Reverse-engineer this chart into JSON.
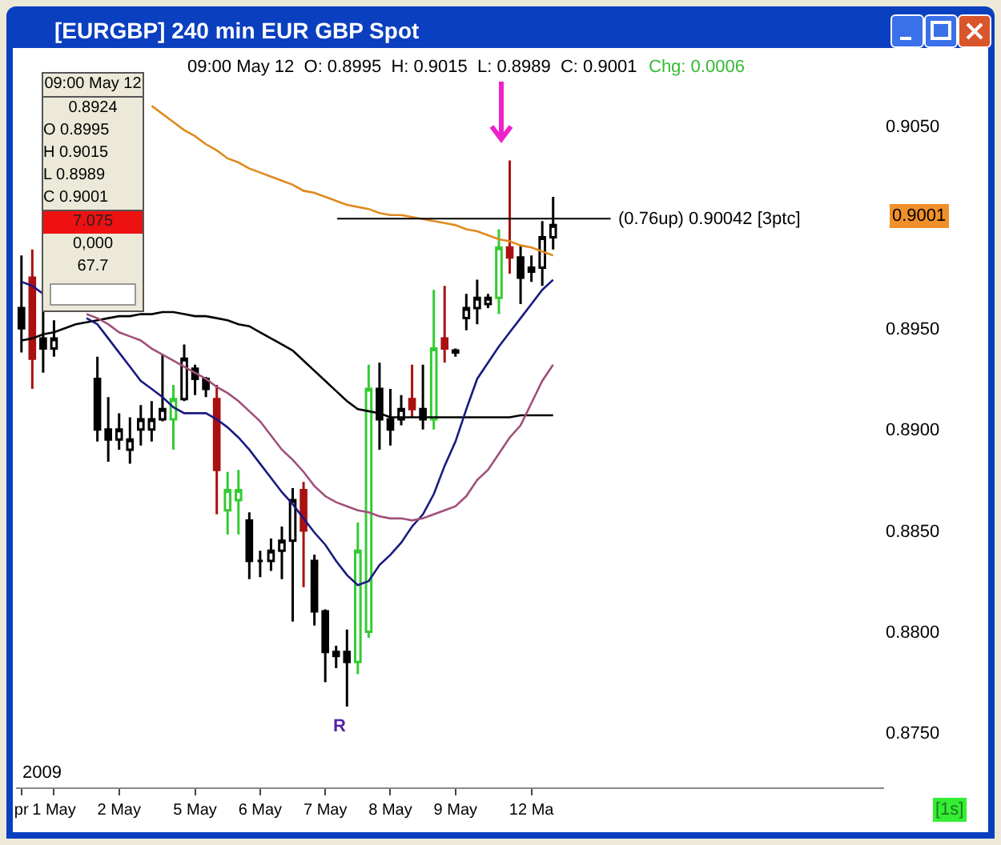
{
  "chart_data": {
    "type": "candlestick",
    "title": "[EURGBP] 240 min EUR GBP Spot",
    "categories": [
      "pr",
      null,
      null,
      "1 May",
      null,
      null,
      null,
      null,
      null,
      "2 May",
      null,
      null,
      null,
      null,
      null,
      null,
      "5 May",
      null,
      null,
      null,
      null,
      null,
      "6 May",
      null,
      null,
      null,
      null,
      null,
      "7 May",
      null,
      null,
      null,
      null,
      null,
      "8 May",
      null,
      null,
      null,
      null,
      null,
      "9 May",
      null,
      null,
      null,
      null,
      null,
      null,
      "12 Ma",
      null,
      null,
      null,
      null,
      null,
      null,
      null,
      null,
      null,
      null,
      null,
      null,
      null,
      null,
      null,
      null,
      null,
      null,
      null,
      null,
      null,
      null,
      null,
      null,
      null,
      null,
      null,
      null,
      null,
      null,
      null,
      null
    ],
    "ohlc": [
      [
        0.896,
        0.8986,
        0.8938,
        0.895
      ],
      [
        0.8975,
        0.8989,
        0.892,
        0.8935
      ],
      [
        0.8945,
        0.8962,
        0.8928,
        0.894
      ],
      [
        0.894,
        0.8954,
        0.8936,
        0.8945
      ],
      null,
      null,
      null,
      [
        0.8925,
        0.8936,
        0.8894,
        0.89
      ],
      [
        0.89,
        0.8916,
        0.8884,
        0.8895
      ],
      [
        0.8895,
        0.8908,
        0.889,
        0.89
      ],
      [
        0.889,
        0.8906,
        0.8883,
        0.8895
      ],
      [
        0.89,
        0.8912,
        0.8892,
        0.8905
      ],
      [
        0.89,
        0.8914,
        0.8894,
        0.8905
      ],
      [
        0.8905,
        0.8937,
        0.8904,
        0.891
      ],
      [
        0.8905,
        0.8922,
        0.889,
        0.8915
      ],
      [
        0.8915,
        0.8942,
        0.8914,
        0.8935
      ],
      [
        0.893,
        0.8932,
        0.8917,
        0.8925
      ],
      [
        0.8925,
        0.8926,
        0.8916,
        0.892
      ],
      [
        0.8915,
        0.8922,
        0.8858,
        0.888
      ],
      [
        0.886,
        0.8879,
        0.8848,
        0.887
      ],
      [
        0.8865,
        0.888,
        0.8848,
        0.887
      ],
      [
        0.8855,
        0.8859,
        0.8826,
        0.8835
      ],
      [
        0.8835,
        0.884,
        0.8827,
        0.8835
      ],
      [
        0.8835,
        0.8846,
        0.883,
        0.884
      ],
      [
        0.884,
        0.8852,
        0.8826,
        0.8845
      ],
      [
        0.8845,
        0.8871,
        0.8805,
        0.8865
      ],
      [
        0.887,
        0.8874,
        0.8822,
        0.885
      ],
      [
        0.8835,
        0.8838,
        0.8803,
        0.881
      ],
      [
        0.881,
        0.8811,
        0.8775,
        0.879
      ],
      [
        0.879,
        0.8793,
        0.8782,
        0.8788
      ],
      [
        0.879,
        0.8801,
        0.8763,
        0.8785
      ],
      [
        0.8785,
        0.8854,
        0.8779,
        0.884
      ],
      [
        0.88,
        0.8932,
        0.8797,
        0.892
      ],
      [
        0.892,
        0.8933,
        0.889,
        0.8905
      ],
      [
        0.8905,
        0.892,
        0.8892,
        0.89
      ],
      [
        0.8905,
        0.8917,
        0.8902,
        0.891
      ],
      [
        0.8915,
        0.8932,
        0.8906,
        0.891
      ],
      [
        0.891,
        0.8932,
        0.89,
        0.8905
      ],
      [
        0.8905,
        0.8969,
        0.89,
        0.894
      ],
      [
        0.8945,
        0.8971,
        0.8933,
        0.894
      ],
      [
        0.8938,
        0.894,
        0.8936,
        0.8939
      ],
      [
        0.8955,
        0.8967,
        0.8949,
        0.896
      ],
      [
        0.896,
        0.8974,
        0.8952,
        0.8965
      ],
      [
        0.8962,
        0.8967,
        0.896,
        0.8965
      ],
      [
        0.8965,
        0.8999,
        0.8957,
        0.899
      ],
      [
        0.899,
        0.9033,
        0.8977,
        0.8985
      ],
      [
        0.8985,
        0.8991,
        0.8962,
        0.8975
      ],
      [
        0.8978,
        0.8986,
        0.8973,
        0.898
      ],
      [
        0.898,
        0.9003,
        0.8971,
        0.8995
      ],
      [
        0.8995,
        0.9015,
        0.8989,
        0.9001
      ],
      null,
      null,
      null,
      null,
      null,
      null,
      null,
      null,
      null,
      null,
      null,
      null,
      null,
      null,
      null,
      null,
      null,
      null,
      null,
      null,
      null,
      null,
      null,
      null,
      null,
      null,
      null,
      null,
      null,
      null
    ],
    "colors": [
      "#000000",
      "#aa1111",
      "#000000",
      "#000000",
      null,
      null,
      null,
      "#000000",
      "#000000",
      "#000000",
      "#000000",
      "#000000",
      "#000000",
      "#000000",
      "#33cc33",
      "#000000",
      "#000000",
      "#000000",
      "#aa1111",
      "#33cc33",
      "#33cc33",
      "#000000",
      "#000000",
      "#000000",
      "#000000",
      "#000000",
      "#aa1111",
      "#000000",
      "#000000",
      "#000000",
      "#000000",
      "#33cc33",
      "#33cc33",
      "#000000",
      "#000000",
      "#000000",
      "#aa1111",
      "#000000",
      "#33cc33",
      "#aa1111",
      "#000000",
      "#000000",
      "#000000",
      "#000000",
      "#33cc33",
      "#aa1111",
      "#000000",
      "#000000",
      "#000000",
      "#000000",
      null,
      null,
      null,
      null,
      null,
      null,
      null,
      null,
      null,
      null,
      null,
      null,
      null,
      null,
      null,
      null,
      null,
      null,
      null,
      null,
      null,
      null,
      null,
      null,
      null,
      null,
      null,
      null,
      null,
      null
    ],
    "series": [
      {
        "type": "line",
        "color": "#e08a1e",
        "values": [
          null,
          null,
          null,
          null,
          null,
          null,
          null,
          null,
          null,
          null,
          null,
          null,
          0.906,
          0.9056,
          0.9052,
          0.9048,
          0.9045,
          0.9041,
          0.9038,
          0.9034,
          0.9032,
          0.9029,
          0.9027,
          0.9025,
          0.9023,
          0.9021,
          0.9018,
          0.9017,
          0.9015,
          0.9013,
          0.9011,
          0.901,
          0.9009,
          0.9007,
          0.9006,
          0.9006,
          0.9005,
          0.9004,
          0.9003,
          0.9002,
          0.9001,
          0.8999,
          0.8998,
          0.8996,
          0.8994,
          0.8993,
          0.8991,
          0.899,
          0.8988,
          0.8986,
          null,
          null,
          null,
          null,
          null,
          null,
          null,
          null,
          null,
          null,
          null,
          null,
          null,
          null,
          null,
          null,
          null,
          null,
          null,
          null,
          null,
          null,
          null,
          null,
          null,
          null,
          null,
          null,
          null,
          null
        ]
      },
      {
        "type": "line",
        "color": "#000000",
        "values": [
          0.8944,
          0.8945,
          0.8947,
          0.8948,
          0.895,
          0.8952,
          0.8953,
          0.8954,
          0.8955,
          0.8956,
          0.8956,
          0.8957,
          0.8957,
          0.8958,
          0.8958,
          0.8957,
          0.8956,
          0.8956,
          0.8955,
          0.8954,
          0.8952,
          0.8951,
          0.8948,
          0.8945,
          0.8942,
          0.8939,
          0.8934,
          0.8929,
          0.8924,
          0.8919,
          0.8914,
          0.891,
          0.8909,
          0.8908,
          0.8906,
          0.8906,
          0.8906,
          0.8906,
          0.8906,
          0.8906,
          0.8906,
          0.8906,
          0.8906,
          0.8906,
          0.8906,
          0.8906,
          0.8907,
          0.8907,
          0.8907,
          0.8907,
          null,
          null,
          null,
          null,
          null,
          null,
          null,
          null,
          null,
          null,
          null,
          null,
          null,
          null,
          null,
          null,
          null,
          null,
          null,
          null,
          null,
          null,
          null,
          null,
          null,
          null,
          null,
          null,
          null,
          null
        ]
      },
      {
        "type": "line",
        "color": "#1a1a80",
        "values": [
          0.8973,
          0.8971,
          0.8967,
          null,
          null,
          null,
          0.8955,
          0.8952,
          0.8945,
          0.8938,
          0.8931,
          0.8924,
          0.892,
          0.8916,
          0.8911,
          0.8908,
          0.8908,
          0.8908,
          0.8905,
          0.8901,
          0.8896,
          0.889,
          0.8883,
          0.8876,
          0.8869,
          0.8863,
          0.8856,
          0.8849,
          0.8843,
          0.8835,
          0.8828,
          0.8823,
          0.8825,
          0.8833,
          0.8838,
          0.8844,
          0.8852,
          0.8858,
          0.8868,
          0.8882,
          0.8894,
          0.891,
          0.8925,
          0.8933,
          0.8941,
          0.8948,
          0.8955,
          0.8962,
          0.8969,
          0.8974,
          null,
          null,
          null,
          null,
          null,
          null,
          null,
          null,
          null,
          null,
          null,
          null,
          null,
          null,
          null,
          null,
          null,
          null,
          null,
          null,
          null,
          null,
          null,
          null,
          null,
          null,
          null,
          null,
          null,
          null
        ]
      },
      {
        "type": "line",
        "color": "#a0507a",
        "values": [
          null,
          null,
          null,
          null,
          null,
          null,
          0.8957,
          0.8955,
          0.8952,
          0.8948,
          0.8946,
          0.8944,
          0.894,
          0.8937,
          0.8934,
          0.8931,
          0.8928,
          0.8925,
          0.8921,
          0.8918,
          0.8914,
          0.8909,
          0.8904,
          0.8897,
          0.889,
          0.8885,
          0.8879,
          0.8872,
          0.8867,
          0.8864,
          0.8862,
          0.886,
          0.8859,
          0.8857,
          0.8856,
          0.8856,
          0.8855,
          0.8856,
          0.8858,
          0.886,
          0.8862,
          0.8867,
          0.8875,
          0.888,
          0.8888,
          0.8896,
          0.8902,
          0.8913,
          0.8924,
          0.8932,
          null,
          null,
          null,
          null,
          null,
          null,
          null,
          null,
          null,
          null,
          null,
          null,
          null,
          null,
          null,
          null,
          null,
          null,
          null,
          null,
          null,
          null,
          null,
          null,
          null,
          null,
          null,
          null,
          null,
          null
        ]
      }
    ],
    "ylim": [
      0.8723,
      0.9087
    ],
    "yticks": [
      {
        "value": 0.875,
        "label": "0.8750"
      },
      {
        "value": 0.88,
        "label": "0.8800"
      },
      {
        "value": 0.885,
        "label": "0.8850"
      },
      {
        "value": 0.89,
        "label": "0.8900"
      },
      {
        "value": 0.895,
        "label": "0.8950"
      },
      {
        "value": 0.905,
        "label": "0.9050"
      }
    ],
    "ref_lines": [
      {
        "axis": "y",
        "value": 0.90042,
        "label": "(0.76up) 0.90042 [3ptc]",
        "color": "#000000"
      }
    ],
    "annotations": [
      "09:00 May 12  O: 0.8995  H: 0.9015  L: 0.8989  C: 0.9001",
      "Chg: 0.0006",
      "09:00 May 12",
      "0.8924",
      "O 0.8995",
      "H 0.9015",
      "L 0.8989",
      "C 0.9001",
      "7.075",
      "0,000",
      "67.7",
      "R",
      "0.9001",
      "2009",
      "[1s]"
    ]
  }
}
